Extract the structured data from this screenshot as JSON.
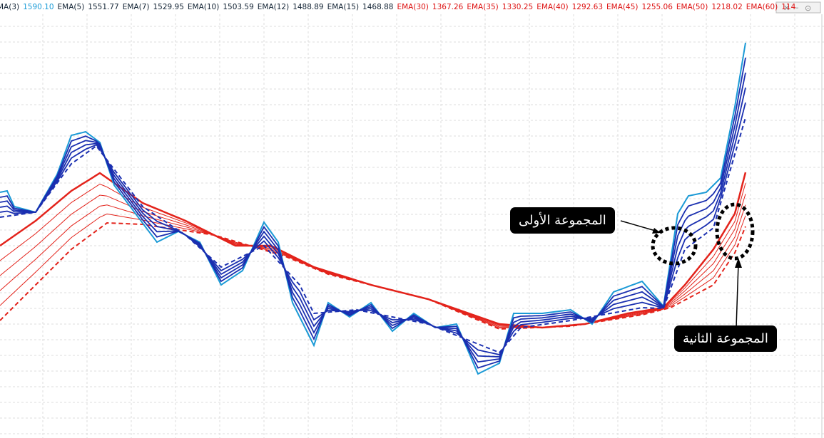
{
  "legend": [
    {
      "label": "MA(3)",
      "value": "1590.10"
    },
    {
      "label": "EMA(5)",
      "value": "1551.77"
    },
    {
      "label": "EMA(7)",
      "value": "1529.95"
    },
    {
      "label": "EMA(10)",
      "value": "1503.59"
    },
    {
      "label": "EMA(12)",
      "value": "1488.89"
    },
    {
      "label": "EMA(15)",
      "value": "1468.88"
    },
    {
      "label": "EMA(30)",
      "value": "1367.26"
    },
    {
      "label": "EMA(35)",
      "value": "1330.25"
    },
    {
      "label": "EMA(40)",
      "value": "1292.63"
    },
    {
      "label": "EMA(45)",
      "value": "1255.06"
    },
    {
      "label": "EMA(50)",
      "value": "1218.02"
    },
    {
      "label": "EMA(60)",
      "value": "114"
    }
  ],
  "annotations": {
    "first_group": "المجموعة الأولى",
    "second_group": "المجموعة الثانية"
  }
}
